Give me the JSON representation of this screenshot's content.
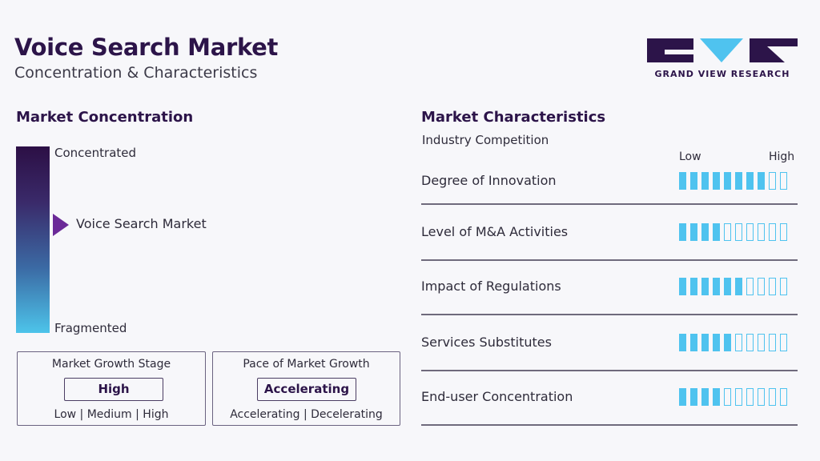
{
  "header": {
    "title": "Voice Search Market",
    "subtitle": "Concentration & Characteristics",
    "logo_text": "GRAND VIEW RESEARCH"
  },
  "concentration": {
    "section_title": "Market Concentration",
    "top_label": "Concentrated",
    "bottom_label": "Fragmented",
    "marker_label": "Voice Search Market",
    "marker_position": 0.42
  },
  "growth_stage": {
    "title": "Market Growth Stage",
    "value": "High",
    "options": "Low | Medium | High"
  },
  "pace": {
    "title": "Pace of Market Growth",
    "value": "Accelerating",
    "options": "Accelerating | Decelerating"
  },
  "chart_data": {
    "type": "table",
    "title": "Market Characteristics",
    "subtitle": "Industry Competition",
    "scale_low": "Low",
    "scale_high": "High",
    "max": 10,
    "rows": [
      {
        "label": "Degree of Innovation",
        "value": 8
      },
      {
        "label": "Level of M&A Activities",
        "value": 4
      },
      {
        "label": "Impact of Regulations",
        "value": 6
      },
      {
        "label": "Services Substitutes",
        "value": 5
      },
      {
        "label": "End-user Concentration",
        "value": 4
      }
    ]
  },
  "colors": {
    "brand": "#2c1449",
    "accent": "#4fc3ef",
    "marker": "#6b2a98"
  }
}
